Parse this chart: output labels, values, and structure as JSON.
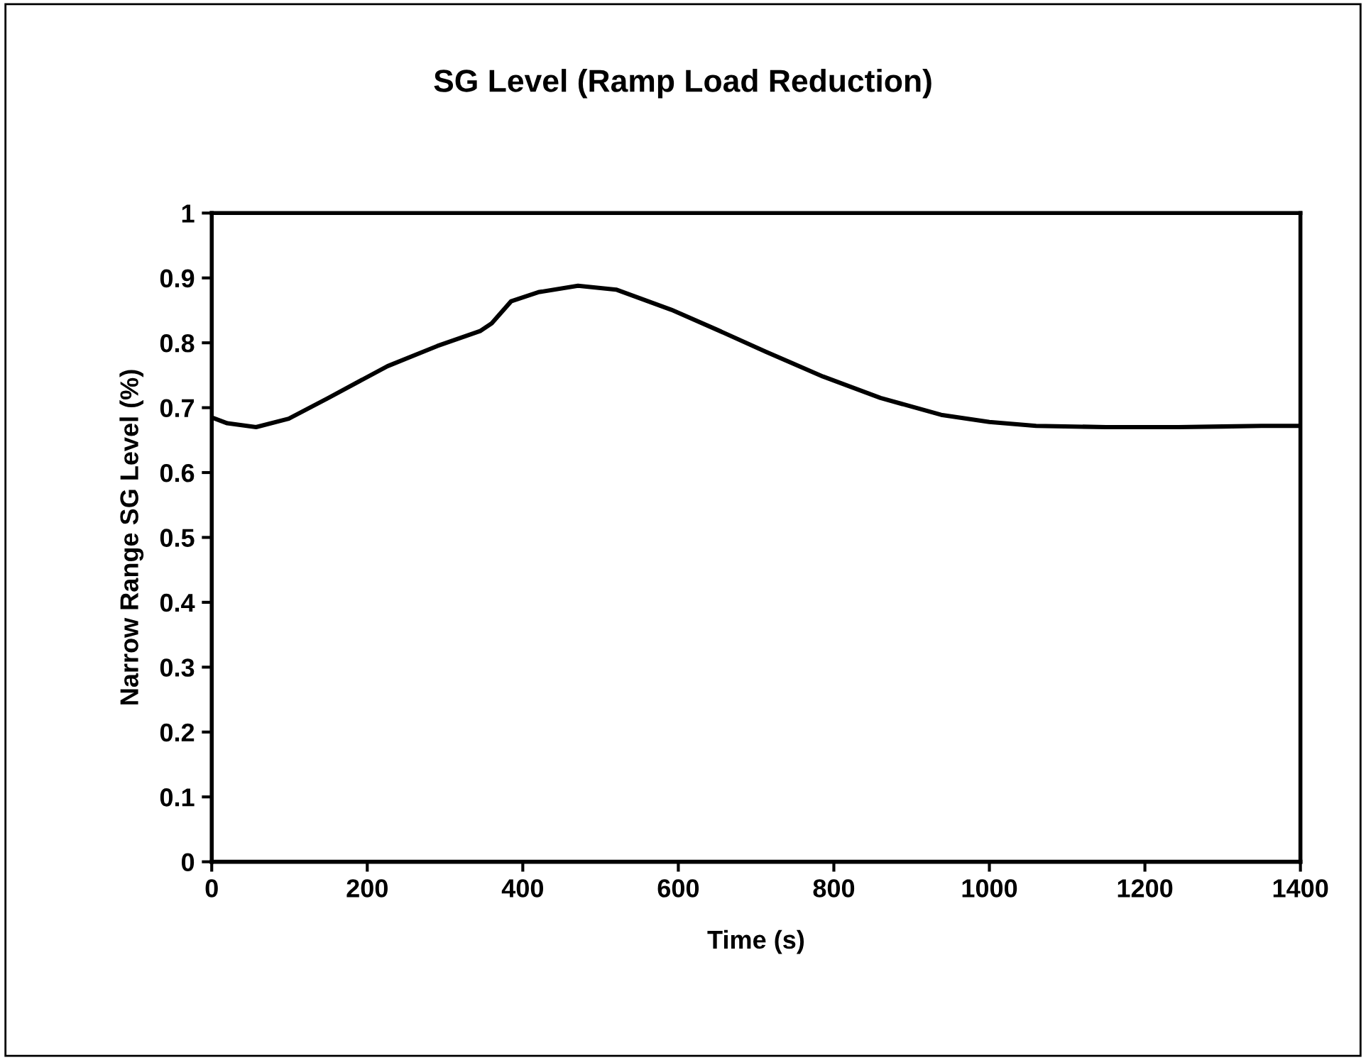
{
  "chart_data": {
    "type": "line",
    "title": "SG Level (Ramp Load Reduction)",
    "xlabel": "Time (s)",
    "ylabel": "Narrow Range SG Level (%)",
    "x": [
      0,
      20,
      57,
      99,
      150,
      226,
      290,
      345,
      360,
      385,
      420,
      471,
      520,
      591,
      650,
      713,
      786,
      860,
      938,
      1000,
      1060,
      1150,
      1243,
      1300,
      1350,
      1400
    ],
    "series": [
      {
        "color": "#000000",
        "values": [
          0.685,
          0.676,
          0.67,
          0.683,
          0.715,
          0.764,
          0.795,
          0.818,
          0.83,
          0.864,
          0.878,
          0.888,
          0.882,
          0.851,
          0.82,
          0.786,
          0.748,
          0.715,
          0.689,
          0.678,
          0.672,
          0.67,
          0.67,
          0.671,
          0.672,
          0.672
        ]
      }
    ],
    "xlim": [
      0,
      1400
    ],
    "xticks": [
      0,
      200,
      400,
      600,
      800,
      1000,
      1200,
      1400
    ],
    "ylim": [
      0,
      1
    ],
    "yticks": [
      0,
      0.1,
      0.2,
      0.3,
      0.4,
      0.5,
      0.6,
      0.7,
      0.8,
      0.9,
      1
    ],
    "grid": false,
    "legend": false,
    "marker": "none",
    "line_style": "solid"
  }
}
